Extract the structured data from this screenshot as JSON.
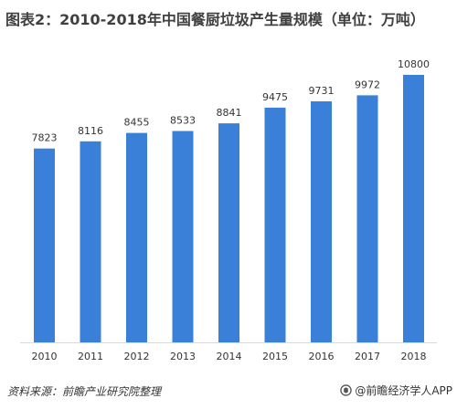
{
  "chart_data": {
    "type": "bar",
    "title": "图表2：2010-2018年中国餐厨垃圾产生量规模（单位：万吨）",
    "categories": [
      "2010",
      "2011",
      "2012",
      "2013",
      "2014",
      "2015",
      "2016",
      "2017",
      "2018"
    ],
    "values": [
      7823,
      8116,
      8455,
      8533,
      8841,
      9475,
      9731,
      9972,
      10800
    ],
    "xlabel": "",
    "ylabel": "",
    "ylim": [
      0,
      12000
    ],
    "grid": false,
    "legend": "none"
  },
  "footer": {
    "source": "资料来源：前瞻产业研究院整理",
    "brand": "@前瞻经济学人APP",
    "brand_icon": "brand-logo-icon"
  },
  "colors": {
    "bar": "#3a7fd8",
    "text": "#333333",
    "axis": "#d9d9d9"
  }
}
